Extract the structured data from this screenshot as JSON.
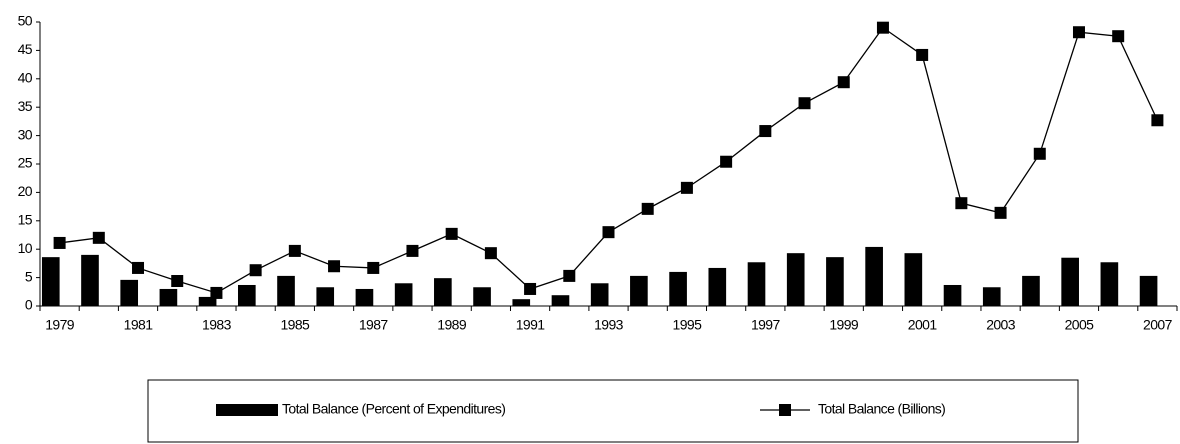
{
  "chart_data": {
    "type": "bar",
    "categories": [
      "1979",
      null,
      "1981",
      null,
      "1983",
      null,
      "1985",
      null,
      "1987",
      null,
      "1989",
      null,
      "1991",
      null,
      "1993",
      null,
      "1995",
      null,
      "1997",
      null,
      "1999",
      null,
      "2001",
      null,
      "2003",
      null,
      "2005",
      null,
      "2007"
    ],
    "series": [
      {
        "name": "Total Balance (Percent of Expenditures)",
        "type": "bar",
        "color": "#000000",
        "values": [
          8.6,
          9.0,
          4.6,
          3.0,
          1.6,
          3.7,
          5.3,
          3.3,
          3.0,
          4.0,
          4.9,
          3.3,
          1.2,
          1.9,
          4.0,
          5.3,
          6.0,
          6.7,
          7.7,
          9.3,
          8.6,
          10.4,
          9.3,
          3.7,
          3.3,
          5.3,
          8.5,
          7.7,
          5.3
        ]
      },
      {
        "name": "Total Balance (Billions)",
        "type": "line",
        "color": "#000000",
        "values": [
          11.1,
          12.0,
          6.7,
          4.4,
          2.3,
          6.3,
          9.7,
          7.0,
          6.7,
          9.7,
          12.7,
          9.3,
          3.0,
          5.3,
          13.0,
          17.1,
          20.8,
          25.4,
          30.8,
          35.7,
          39.4,
          49.0,
          44.2,
          18.1,
          16.4,
          26.8,
          48.2,
          47.5,
          32.7
        ]
      }
    ],
    "ylim": [
      0,
      50
    ],
    "yticks": [
      0,
      5,
      10,
      15,
      20,
      25,
      30,
      35,
      40,
      45,
      50
    ],
    "grid": false,
    "legend": "bottom"
  }
}
